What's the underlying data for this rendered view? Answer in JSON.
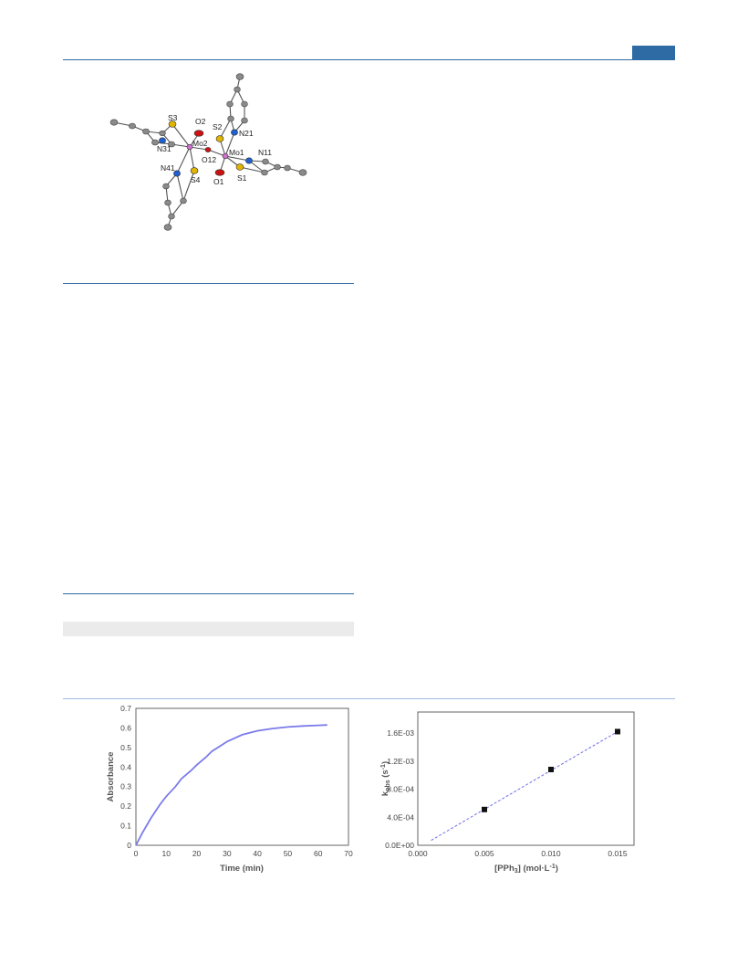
{
  "structure_figure": {
    "atom_labels": {
      "s3": "S3",
      "o2": "O2",
      "s2": "S2",
      "n21": "N21",
      "n31": "N31",
      "mo2": "Mo2",
      "mo1": "Mo1",
      "n11": "N11",
      "o12": "O12",
      "n41": "N41",
      "s4": "S4",
      "o1": "O1",
      "s1": "S1"
    }
  },
  "colors": {
    "accent": "#2e6aa3",
    "curve": "#7b7bea",
    "carbon": "#8a8a8a",
    "sulfur": "#e0b400",
    "nitrogen": "#1f5fd0",
    "oxygen": "#cc1111",
    "molybdenum": "#d070d0"
  },
  "chart_data": [
    {
      "type": "line",
      "ylabel": "Absorbance",
      "xlabel": "Time (min)",
      "xlim": [
        0,
        70
      ],
      "ylim": [
        0,
        0.7
      ],
      "x_ticks": [
        "0",
        "10",
        "20",
        "30",
        "40",
        "50",
        "60",
        "70"
      ],
      "y_ticks": [
        "0",
        "0.1",
        "0.2",
        "0.3",
        "0.4",
        "0.5",
        "0.6",
        "0.7"
      ],
      "series": [
        {
          "x": [
            0,
            2,
            5,
            8,
            10,
            13,
            15,
            18,
            20,
            23,
            25,
            28,
            30,
            35,
            40,
            45,
            50,
            55,
            60,
            63
          ],
          "values": [
            0.0,
            0.06,
            0.14,
            0.21,
            0.25,
            0.3,
            0.34,
            0.38,
            0.41,
            0.45,
            0.48,
            0.51,
            0.53,
            0.565,
            0.585,
            0.597,
            0.605,
            0.61,
            0.613,
            0.615
          ]
        }
      ],
      "grid": false
    },
    {
      "type": "scatter",
      "ylabel": "k",
      "ylabel_sub": "obs",
      "ylabel_unit": " (s",
      "ylabel_sup": "-1",
      "ylabel_close": ")",
      "xlabel": "[PPh",
      "xlabel_sub": "3",
      "xlabel_unit": "] (mol·L",
      "xlabel_sup": "-1",
      "xlabel_close": ")",
      "xlim": [
        0.0,
        0.015
      ],
      "ylim": [
        0.0,
        0.0016
      ],
      "x_ticks": [
        "0.000",
        "0.005",
        "0.010",
        "0.015"
      ],
      "y_ticks": [
        "0.0E+00",
        "4.0E-04",
        "8.0E-04",
        "1.2E-03",
        "1.6E-03"
      ],
      "points": {
        "x": [
          0.005,
          0.01,
          0.015
        ],
        "y": [
          0.00051,
          0.00108,
          0.00162
        ]
      },
      "trendline": {
        "x": [
          0.001,
          0.015
        ],
        "y": [
          7e-05,
          0.00162
        ],
        "style": "dashed"
      },
      "grid": false
    }
  ]
}
